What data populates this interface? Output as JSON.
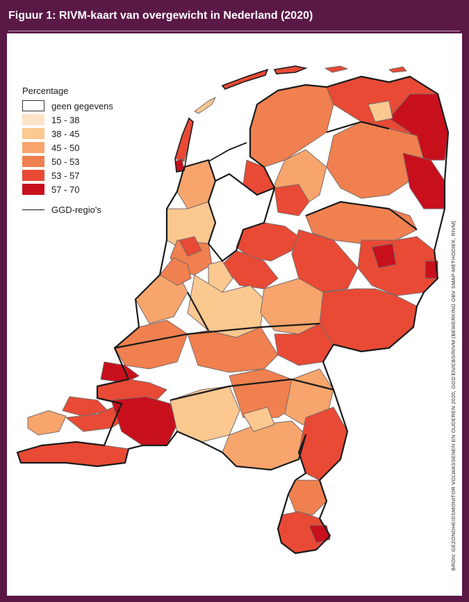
{
  "figure": {
    "title": "Figuur 1: RIVM-kaart van overgewicht in Nederland (2020)",
    "source": "BRON: GEZONDHEIDSMONITOR VOLWASSENEN EN OUDEREN 2020, GGD'EN/CBS/RIVM (BEWERKING OBV SMAP-METHODIEK, RIVM)"
  },
  "legend": {
    "title": "Percentage",
    "items": [
      {
        "label": "geen gegevens",
        "color": "#ffffff"
      },
      {
        "label": "15 - 38",
        "color": "#fde3c8"
      },
      {
        "label": "38 - 45",
        "color": "#fbc890"
      },
      {
        "label": "45 - 50",
        "color": "#f7a56c"
      },
      {
        "label": "50 - 53",
        "color": "#f0804f"
      },
      {
        "label": "53 - 57",
        "color": "#e84a35"
      },
      {
        "label": "57 - 70",
        "color": "#c8101d"
      }
    ],
    "line_label": "GGD-regio's"
  },
  "colors": {
    "frame": "#5a1846",
    "border": "#1a1a1a",
    "municipal_border": "#7a6a6a"
  }
}
